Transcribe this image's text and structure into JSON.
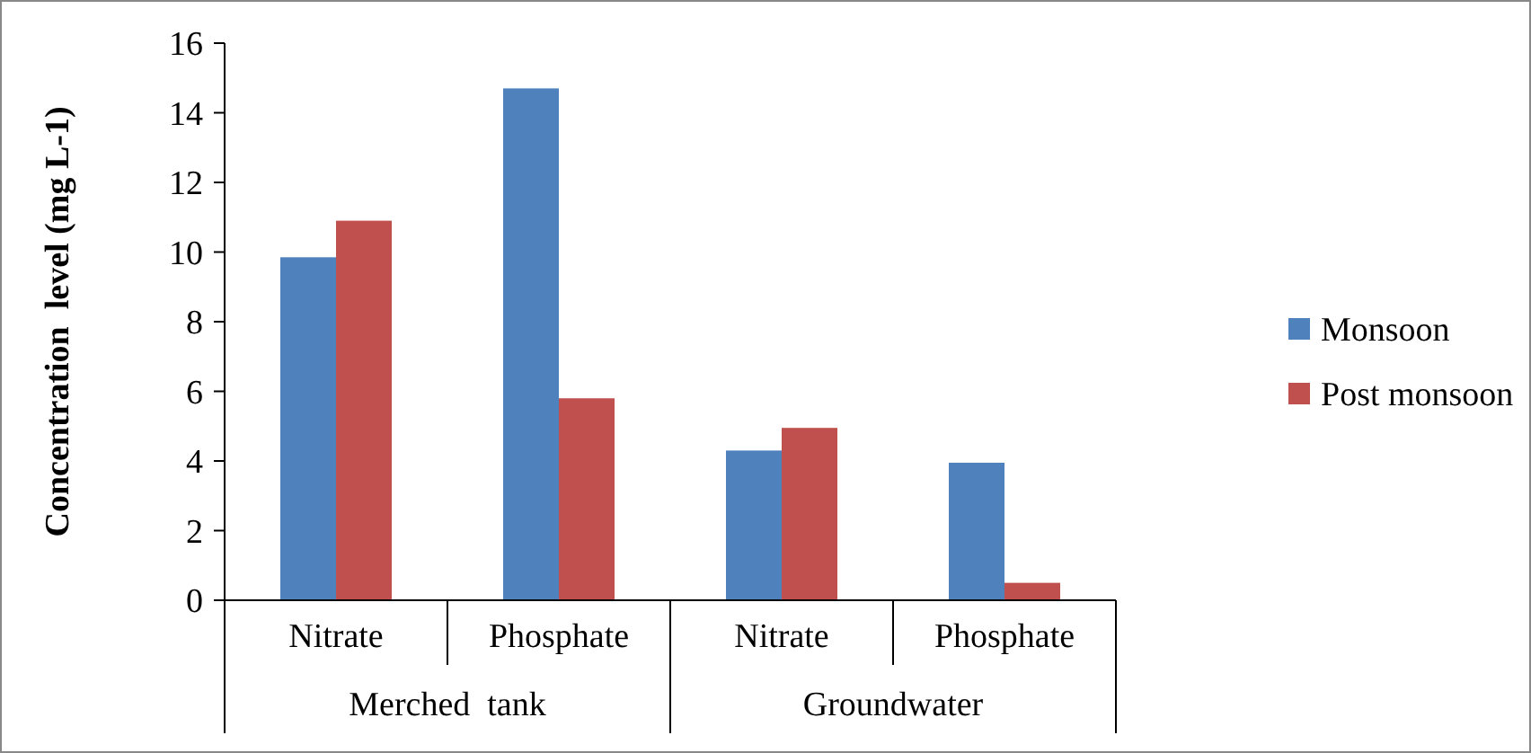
{
  "chart_data": {
    "type": "bar",
    "ylabel": "Concentration  level (mg L-1)",
    "categories": [
      "Nitrate",
      "Phosphate",
      "Nitrate",
      "Phosphate"
    ],
    "annotations": [
      "Merched  tank",
      "Groundwater"
    ],
    "series": [
      {
        "name": "Monsoon",
        "color": "#4f81bd",
        "values": [
          9.85,
          14.7,
          4.3,
          3.95
        ]
      },
      {
        "name": "Post monsoon",
        "color": "#c0504d",
        "values": [
          10.9,
          5.8,
          4.95,
          0.5
        ]
      }
    ],
    "ylim": [
      0,
      16
    ],
    "yticks": [
      0,
      2,
      4,
      6,
      8,
      10,
      12,
      14,
      16
    ],
    "grid": false,
    "legend": "right"
  }
}
